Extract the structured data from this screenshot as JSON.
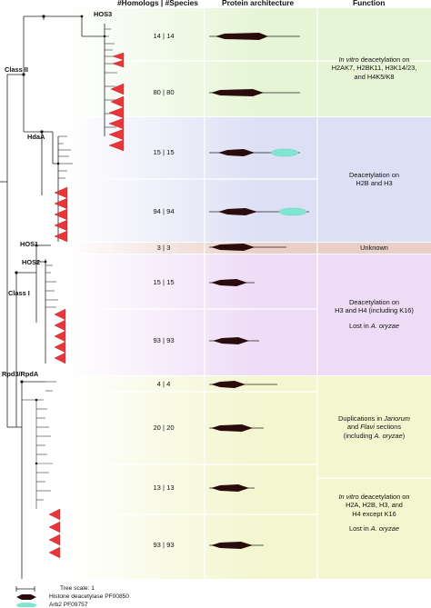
{
  "headers": {
    "homologs_species": "#Homologs | #Species",
    "architecture": "Protein architecture",
    "function": "Function"
  },
  "clade_labels": {
    "hos3": "HOS3",
    "class2": "Class II",
    "hdaa": "HdaA",
    "hos1": "HOS1",
    "hos2": "HOS2",
    "class1": "Class I",
    "rpd3": "Rpd3/RpdA"
  },
  "rows": [
    {
      "counts": "14 | 14"
    },
    {
      "counts": "80 | 80"
    },
    {
      "counts": "15 | 15"
    },
    {
      "counts": "94 | 94"
    },
    {
      "counts": "3 | 3"
    },
    {
      "counts": "15 | 15"
    },
    {
      "counts": "93 | 93"
    },
    {
      "counts": "4 | 4"
    },
    {
      "counts": "20 | 20"
    },
    {
      "counts": "13 | 13"
    },
    {
      "counts": "93 | 93"
    }
  ],
  "functions": {
    "hos3_l1_italic": "In vitro",
    "hos3_l1_rest": " deacetylation on",
    "hos3_l2": "H2AK7, H2BK11, H3K14/23,",
    "hos3_l3": "and H4K5/K8",
    "hdaa_l1": "Deacetylation on",
    "hdaa_l2": "H2B and H3",
    "hos1": "Unknown",
    "hos2_l1": "Deacetylation on",
    "hos2_l2": "H3 and H4 (including K16)",
    "hos2_l3_prefix": "Lost in ",
    "hos2_l3_italic": "A. oryzae",
    "dup_l1_prefix": "Duplications in ",
    "dup_l1_italic": "Janorum",
    "dup_l2_prefix": "and ",
    "dup_l2_italic": "Flavi",
    "dup_l2_suffix": " sections",
    "dup_l3_prefix": "(including ",
    "dup_l3_italic": "A. oryzae",
    "dup_l3_suffix": ")",
    "rpd3_l1_italic": "In vitro",
    "rpd3_l1_rest": " deacetylation on",
    "rpd3_l2": "H2A, H2B, H3, and",
    "rpd3_l3": "H4 except K16",
    "rpd3_l4_prefix": "Lost in ",
    "rpd3_l4_italic": "A. oryzae"
  },
  "legend": {
    "scale": "Tree scale: 1",
    "hdac": "Histone deacetylase PF00850",
    "arb2": "Arb2 PF09757"
  },
  "colors": {
    "hos3": "#e6f5d6",
    "hdaa": "#dde0f5",
    "hos1": "#e9cfc8",
    "hos2": "#eedcf6",
    "rpd3": "#f3f6cf",
    "collapsed": "#e8363a",
    "domain": "#2a0c0c",
    "arb2": "#7fe6cf"
  }
}
